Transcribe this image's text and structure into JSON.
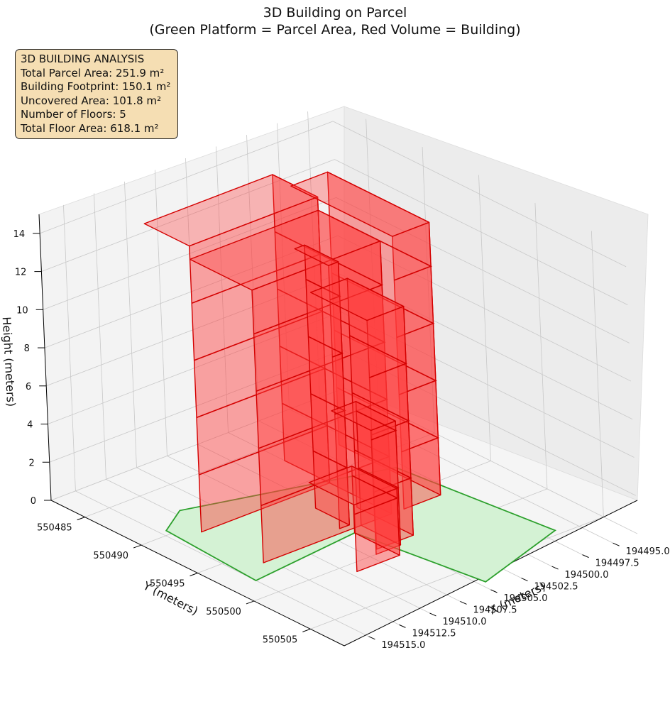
{
  "chart_data": {
    "type": "3d-polygon",
    "title": "3D Building on Parcel",
    "subtitle": "(Green Platform = Parcel Area, Red Volume = Building)",
    "xlabel": "X (meters)",
    "ylabel": "Y (meters)",
    "zlabel": "Height (meters)",
    "xlim": [
      194493,
      194517
    ],
    "ylim": [
      550482,
      550508
    ],
    "zlim": [
      0,
      15
    ],
    "x_ticks": [
      "194495.0",
      "194497.5",
      "194500.0",
      "194502.5",
      "194505.0",
      "194507.5",
      "194510.0",
      "194512.5",
      "194515.0"
    ],
    "y_ticks": [
      "550485",
      "550490",
      "550495",
      "550500",
      "550505"
    ],
    "z_ticks": [
      "0",
      "2",
      "4",
      "6",
      "8",
      "10",
      "12",
      "14"
    ],
    "grid": true,
    "colors": {
      "parcel_fill": "#d4f2d4",
      "parcel_edge": "#2ca02c",
      "building_face": "#ff3b3b",
      "building_edge": "#d40000"
    },
    "info": {
      "heading": "3D BUILDING ANALYSIS",
      "lines": [
        "Total Parcel Area: 251.9 m²",
        "Building Footprint: 150.1 m²",
        "Uncovered Area: 101.8 m²",
        "Number of Floors: 5",
        "Total Floor Area: 618.1 m²"
      ]
    }
  }
}
